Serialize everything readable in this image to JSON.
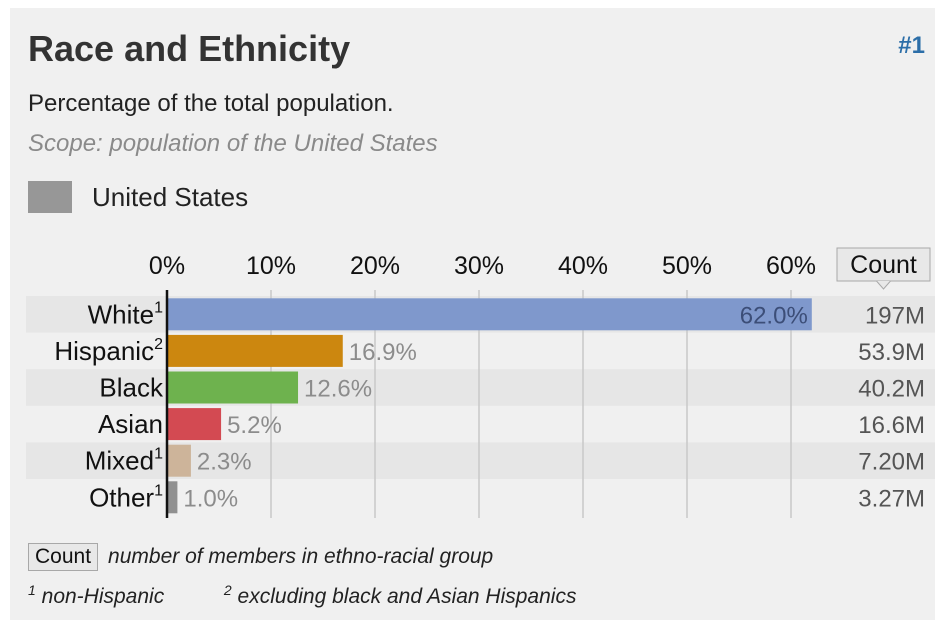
{
  "card": {
    "title": "Race and Ethnicity",
    "rank": "#1",
    "subtitle": "Percentage of the total population.",
    "scope": "Scope: population of the United States"
  },
  "legend": {
    "label": "United States",
    "color": "#979797"
  },
  "count_button": "Count",
  "footnotes": {
    "count_chip": "Count",
    "count_desc": "number of members in ethno-racial group",
    "note1_marker": "1",
    "note1_text": "non-Hispanic",
    "note2_marker": "2",
    "note2_text": "excluding black and Asian Hispanics"
  },
  "chart_data": {
    "type": "bar",
    "orientation": "horizontal",
    "categories": [
      "White",
      "Hispanic",
      "Black",
      "Asian",
      "Mixed",
      "Other"
    ],
    "footnote_markers": [
      "1",
      "2",
      "",
      "",
      "1",
      "1"
    ],
    "values": [
      62.0,
      16.9,
      12.6,
      5.2,
      2.3,
      1.0
    ],
    "value_labels": [
      "62.0%",
      "16.9%",
      "12.6%",
      "5.2%",
      "2.3%",
      "1.0%"
    ],
    "counts": [
      "197M",
      "53.9M",
      "40.2M",
      "16.6M",
      "7.20M",
      "3.27M"
    ],
    "colors": [
      "#7f98cc",
      "#cc870f",
      "#6eb24e",
      "#d34a52",
      "#cdb49a",
      "#909090"
    ],
    "xlim": [
      0,
      60
    ],
    "xticks": [
      0,
      10,
      20,
      30,
      40,
      50,
      60
    ],
    "xtick_labels": [
      "0%",
      "10%",
      "20%",
      "30%",
      "40%",
      "50%",
      "60%"
    ],
    "grid": true
  }
}
